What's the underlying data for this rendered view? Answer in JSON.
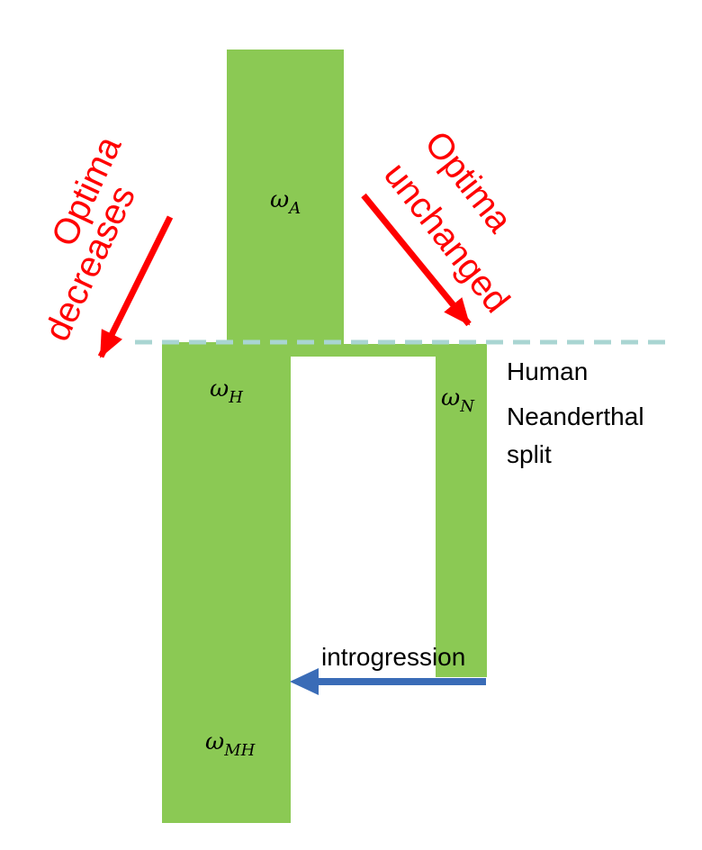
{
  "colors": {
    "population": "#8bc954",
    "split_line": "#a9d5d2",
    "red": "#ff0000",
    "introgression": "#3a6cb7"
  },
  "populations": {
    "ancestral": {
      "symbol": "ω",
      "subscript": "A"
    },
    "human": {
      "symbol": "ω",
      "subscript": "H"
    },
    "neanderthal": {
      "symbol": "ω",
      "subscript": "N"
    },
    "modern_human": {
      "symbol": "ω",
      "subscript": "MH"
    }
  },
  "left_annotation": {
    "line1": "Optima",
    "line2": "decreases"
  },
  "right_annotation": {
    "line1": "Optima",
    "line2": "unchanged"
  },
  "split_label": {
    "line1": "Human",
    "line2": "Neanderthal",
    "line3": "split"
  },
  "introgression_label": "introgression"
}
